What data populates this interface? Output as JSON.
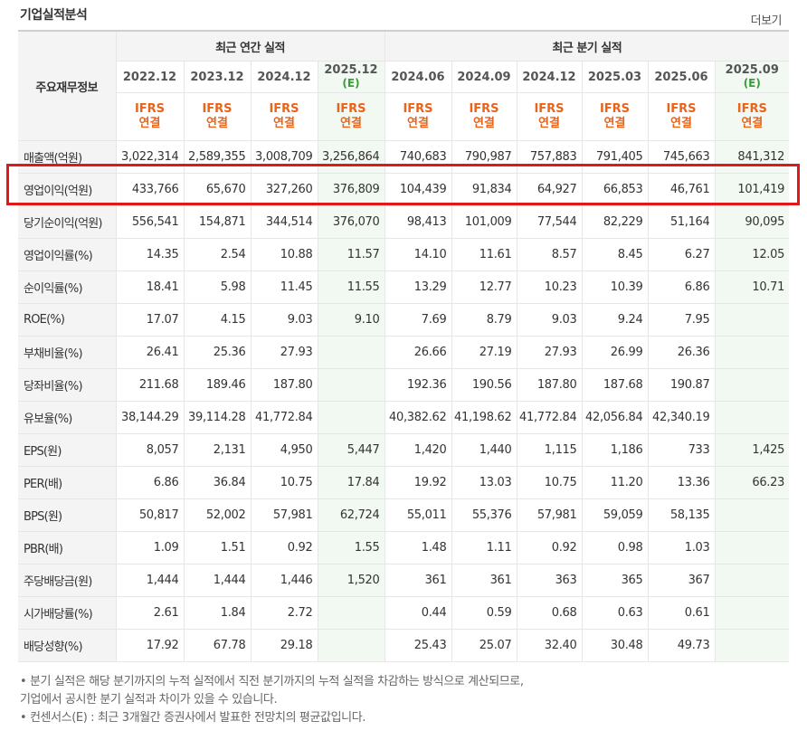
{
  "title": "기업실적분석",
  "more_label": "더보기",
  "corner_label": "주요재무정보",
  "group_annual": "최근 연간 실적",
  "group_quarter": "최근 분기 실적",
  "periods": [
    {
      "date": "2022.12",
      "est": "",
      "std1": "IFRS",
      "std2": "연결"
    },
    {
      "date": "2023.12",
      "est": "",
      "std1": "IFRS",
      "std2": "연결"
    },
    {
      "date": "2024.12",
      "est": "",
      "std1": "IFRS",
      "std2": "연결"
    },
    {
      "date": "2025.12",
      "est": "(E)",
      "std1": "IFRS",
      "std2": "연결"
    },
    {
      "date": "2024.06",
      "est": "",
      "std1": "IFRS",
      "std2": "연결"
    },
    {
      "date": "2024.09",
      "est": "",
      "std1": "IFRS",
      "std2": "연결"
    },
    {
      "date": "2024.12",
      "est": "",
      "std1": "IFRS",
      "std2": "연결"
    },
    {
      "date": "2025.03",
      "est": "",
      "std1": "IFRS",
      "std2": "연결"
    },
    {
      "date": "2025.06",
      "est": "",
      "std1": "IFRS",
      "std2": "연결"
    },
    {
      "date": "2025.09",
      "est": "(E)",
      "std1": "IFRS",
      "std2": "연결"
    }
  ],
  "rows": [
    {
      "label": "매출액(억원)",
      "values": [
        "3,022,314",
        "2,589,355",
        "3,008,709",
        "3,256,864",
        "740,683",
        "790,987",
        "757,883",
        "791,405",
        "745,663",
        "841,312"
      ]
    },
    {
      "label": "영업이익(억원)",
      "values": [
        "433,766",
        "65,670",
        "327,260",
        "376,809",
        "104,439",
        "91,834",
        "64,927",
        "66,853",
        "46,761",
        "101,419"
      ]
    },
    {
      "label": "당기순이익(억원)",
      "values": [
        "556,541",
        "154,871",
        "344,514",
        "376,070",
        "98,413",
        "101,009",
        "77,544",
        "82,229",
        "51,164",
        "90,095"
      ]
    },
    {
      "label": "영업이익률(%)",
      "values": [
        "14.35",
        "2.54",
        "10.88",
        "11.57",
        "14.10",
        "11.61",
        "8.57",
        "8.45",
        "6.27",
        "12.05"
      ]
    },
    {
      "label": "순이익률(%)",
      "values": [
        "18.41",
        "5.98",
        "11.45",
        "11.55",
        "13.29",
        "12.77",
        "10.23",
        "10.39",
        "6.86",
        "10.71"
      ]
    },
    {
      "label": "ROE(%)",
      "values": [
        "17.07",
        "4.15",
        "9.03",
        "9.10",
        "7.69",
        "8.79",
        "9.03",
        "9.24",
        "7.95",
        ""
      ]
    },
    {
      "label": "부채비율(%)",
      "values": [
        "26.41",
        "25.36",
        "27.93",
        "",
        "26.66",
        "27.19",
        "27.93",
        "26.99",
        "26.36",
        ""
      ]
    },
    {
      "label": "당좌비율(%)",
      "values": [
        "211.68",
        "189.46",
        "187.80",
        "",
        "192.36",
        "190.56",
        "187.80",
        "187.68",
        "190.87",
        ""
      ]
    },
    {
      "label": "유보율(%)",
      "values": [
        "38,144.29",
        "39,114.28",
        "41,772.84",
        "",
        "40,382.62",
        "41,198.62",
        "41,772.84",
        "42,056.84",
        "42,340.19",
        ""
      ]
    },
    {
      "label": "EPS(원)",
      "values": [
        "8,057",
        "2,131",
        "4,950",
        "5,447",
        "1,420",
        "1,440",
        "1,115",
        "1,186",
        "733",
        "1,425"
      ]
    },
    {
      "label": "PER(배)",
      "values": [
        "6.86",
        "36.84",
        "10.75",
        "17.84",
        "19.92",
        "13.03",
        "10.75",
        "11.20",
        "13.36",
        "66.23"
      ]
    },
    {
      "label": "BPS(원)",
      "values": [
        "50,817",
        "52,002",
        "57,981",
        "62,724",
        "55,011",
        "55,376",
        "57,981",
        "59,059",
        "58,135",
        ""
      ]
    },
    {
      "label": "PBR(배)",
      "values": [
        "1.09",
        "1.51",
        "0.92",
        "1.55",
        "1.48",
        "1.11",
        "0.92",
        "0.98",
        "1.03",
        ""
      ]
    },
    {
      "label": "주당배당금(원)",
      "values": [
        "1,444",
        "1,444",
        "1,446",
        "1,520",
        "361",
        "361",
        "363",
        "365",
        "367",
        ""
      ]
    },
    {
      "label": "시가배당률(%)",
      "values": [
        "2.61",
        "1.84",
        "2.72",
        "",
        "0.44",
        "0.59",
        "0.68",
        "0.63",
        "0.61",
        ""
      ]
    },
    {
      "label": "배당성향(%)",
      "values": [
        "17.92",
        "67.78",
        "29.18",
        "",
        "25.43",
        "25.07",
        "32.40",
        "30.48",
        "49.73",
        ""
      ]
    }
  ],
  "section_breaks": [
    0,
    6,
    9,
    13
  ],
  "notes": [
    "• 분기 실적은 해당 분기까지의 누적 실적에서 직전 분기까지의 누적 실적을 차감하는 방식으로 계산되므로,",
    "   기업에서 공시한 분기 실적과 차이가 있을 수 있습니다.",
    "• 컨센서스(E) : 최근 3개월간 증권사에서 발표한 전망치의 평균값입니다."
  ],
  "colors": {
    "ifrs": "#e8641b",
    "estimate_bg": "#f2f8f2",
    "estimate_text": "#3a9b3a",
    "highlight": "#e01818"
  }
}
